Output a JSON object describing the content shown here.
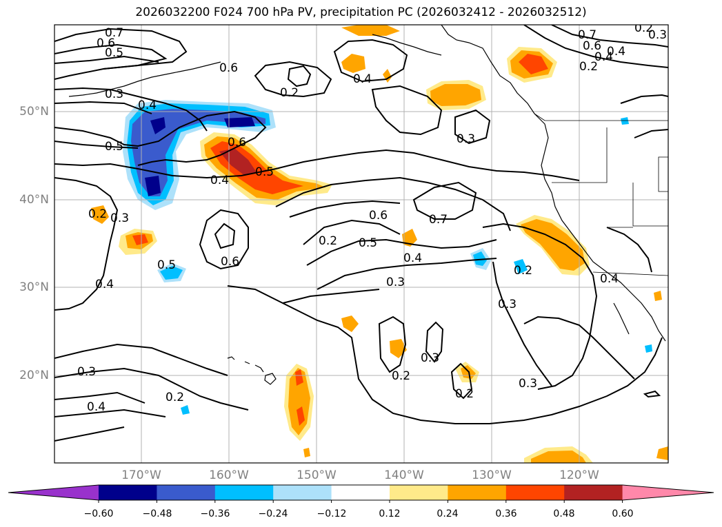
{
  "title": "2026032200 F024 700 hPa PV, precipitation PC (2026032412 - 2026032512)",
  "lat_labels": [
    "50°N",
    "40°N",
    "30°N",
    "20°N"
  ],
  "lon_labels": [
    "170°W",
    "160°W",
    "150°W",
    "140°W",
    "130°W",
    "120°W"
  ],
  "contour_labels": [
    "0.7",
    "0.6",
    "0.5",
    "0.6",
    "0.3",
    "0.4",
    "0.5",
    "0.6",
    "0.5",
    "0.4",
    "0.2",
    "0.4",
    "0.3",
    "0.7",
    "0.6",
    "0.4",
    "0.2",
    "0.2",
    "0.3",
    "0.6",
    "0.7",
    "0.5",
    "0.4",
    "0.3",
    "0.5",
    "0.6",
    "0.4",
    "0.3",
    "0.2",
    "0.3",
    "0.2",
    "0.3",
    "0.4",
    "0.2",
    "0.4",
    "0.3",
    "0.2",
    "0.2",
    "0.3",
    "0.4",
    "0.2"
  ],
  "colorbar": {
    "ticks": [
      "−0.60",
      "−0.48",
      "−0.36",
      "−0.24",
      "−0.12",
      "0.12",
      "0.24",
      "0.36",
      "0.48",
      "0.60"
    ],
    "colors": [
      "#9932CC",
      "#00008B",
      "#3A5BCD",
      "#00BFFF",
      "#ADE1FA",
      "#FFFFFF",
      "#FFEA8A",
      "#FFA500",
      "#FF4500",
      "#B22222",
      "#FF88AA"
    ]
  }
}
